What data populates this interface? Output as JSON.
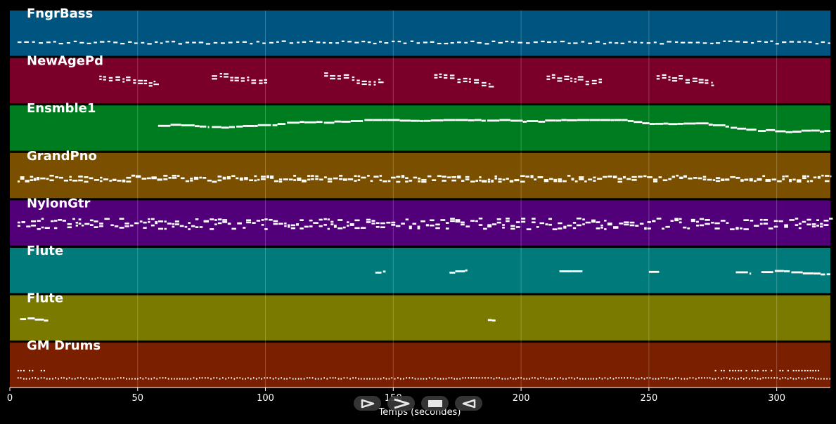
{
  "chart_data": {
    "type": "piano-roll",
    "title": "",
    "xlabel": "Temps (secondes)",
    "ylabel": "",
    "xlim": [
      0,
      321
    ],
    "x_ticks": [
      0,
      50,
      100,
      150,
      200,
      250,
      300
    ],
    "grid": true,
    "tracks": [
      {
        "name": "FngrBass",
        "color": "#005580",
        "note_style": "dots",
        "regions": [
          [
            3,
            321
          ]
        ],
        "pitch_range": [
          0.28,
          0.34
        ]
      },
      {
        "name": "NewAgePd",
        "color": "#7a0029",
        "note_style": "phrases",
        "regions": [
          [
            35,
            57
          ],
          [
            79,
            101
          ],
          [
            123,
            145
          ],
          [
            166,
            188
          ],
          [
            210,
            232
          ],
          [
            253,
            275
          ]
        ],
        "pitch_range": [
          0.45,
          0.65
        ]
      },
      {
        "name": "Ensmble1",
        "color": "#007c20",
        "note_style": "melody",
        "regions": [
          [
            58,
            78
          ],
          [
            79,
            321
          ]
        ],
        "pitch_range": [
          0.4,
          0.7
        ]
      },
      {
        "name": "GrandPno",
        "color": "#7a5000",
        "note_style": "dense",
        "regions": [
          [
            3,
            321
          ]
        ],
        "pitch_range": [
          0.38,
          0.52
        ]
      },
      {
        "name": "NylonGtr",
        "color": "#52007a",
        "note_style": "dense",
        "regions": [
          [
            3,
            321
          ]
        ],
        "pitch_range": [
          0.38,
          0.62
        ]
      },
      {
        "name": "Flute",
        "color": "#007a7a",
        "note_style": "melody",
        "regions": [
          [
            143,
            147
          ],
          [
            172,
            179
          ],
          [
            215,
            224
          ],
          [
            250,
            254
          ],
          [
            284,
            290
          ],
          [
            294,
            321
          ]
        ],
        "pitch_range": [
          0.42,
          0.56
        ]
      },
      {
        "name": "Flute",
        "color": "#7a7a00",
        "note_style": "melody",
        "regions": [
          [
            4,
            15
          ],
          [
            187,
            190
          ]
        ],
        "pitch_range": [
          0.42,
          0.56
        ]
      },
      {
        "name": "GM Drums",
        "color": "#7a2000",
        "note_style": "drums",
        "regions": [
          [
            3,
            321
          ]
        ],
        "pitch_range": [
          0.22,
          0.4
        ]
      }
    ]
  },
  "controls": [
    {
      "name": "play-forward-button",
      "icon": "play-icon"
    },
    {
      "name": "fast-forward-button",
      "icon": "forward-icon"
    },
    {
      "name": "stop-button",
      "icon": "stop-icon"
    },
    {
      "name": "play-reverse-button",
      "icon": "reverse-icon"
    }
  ]
}
